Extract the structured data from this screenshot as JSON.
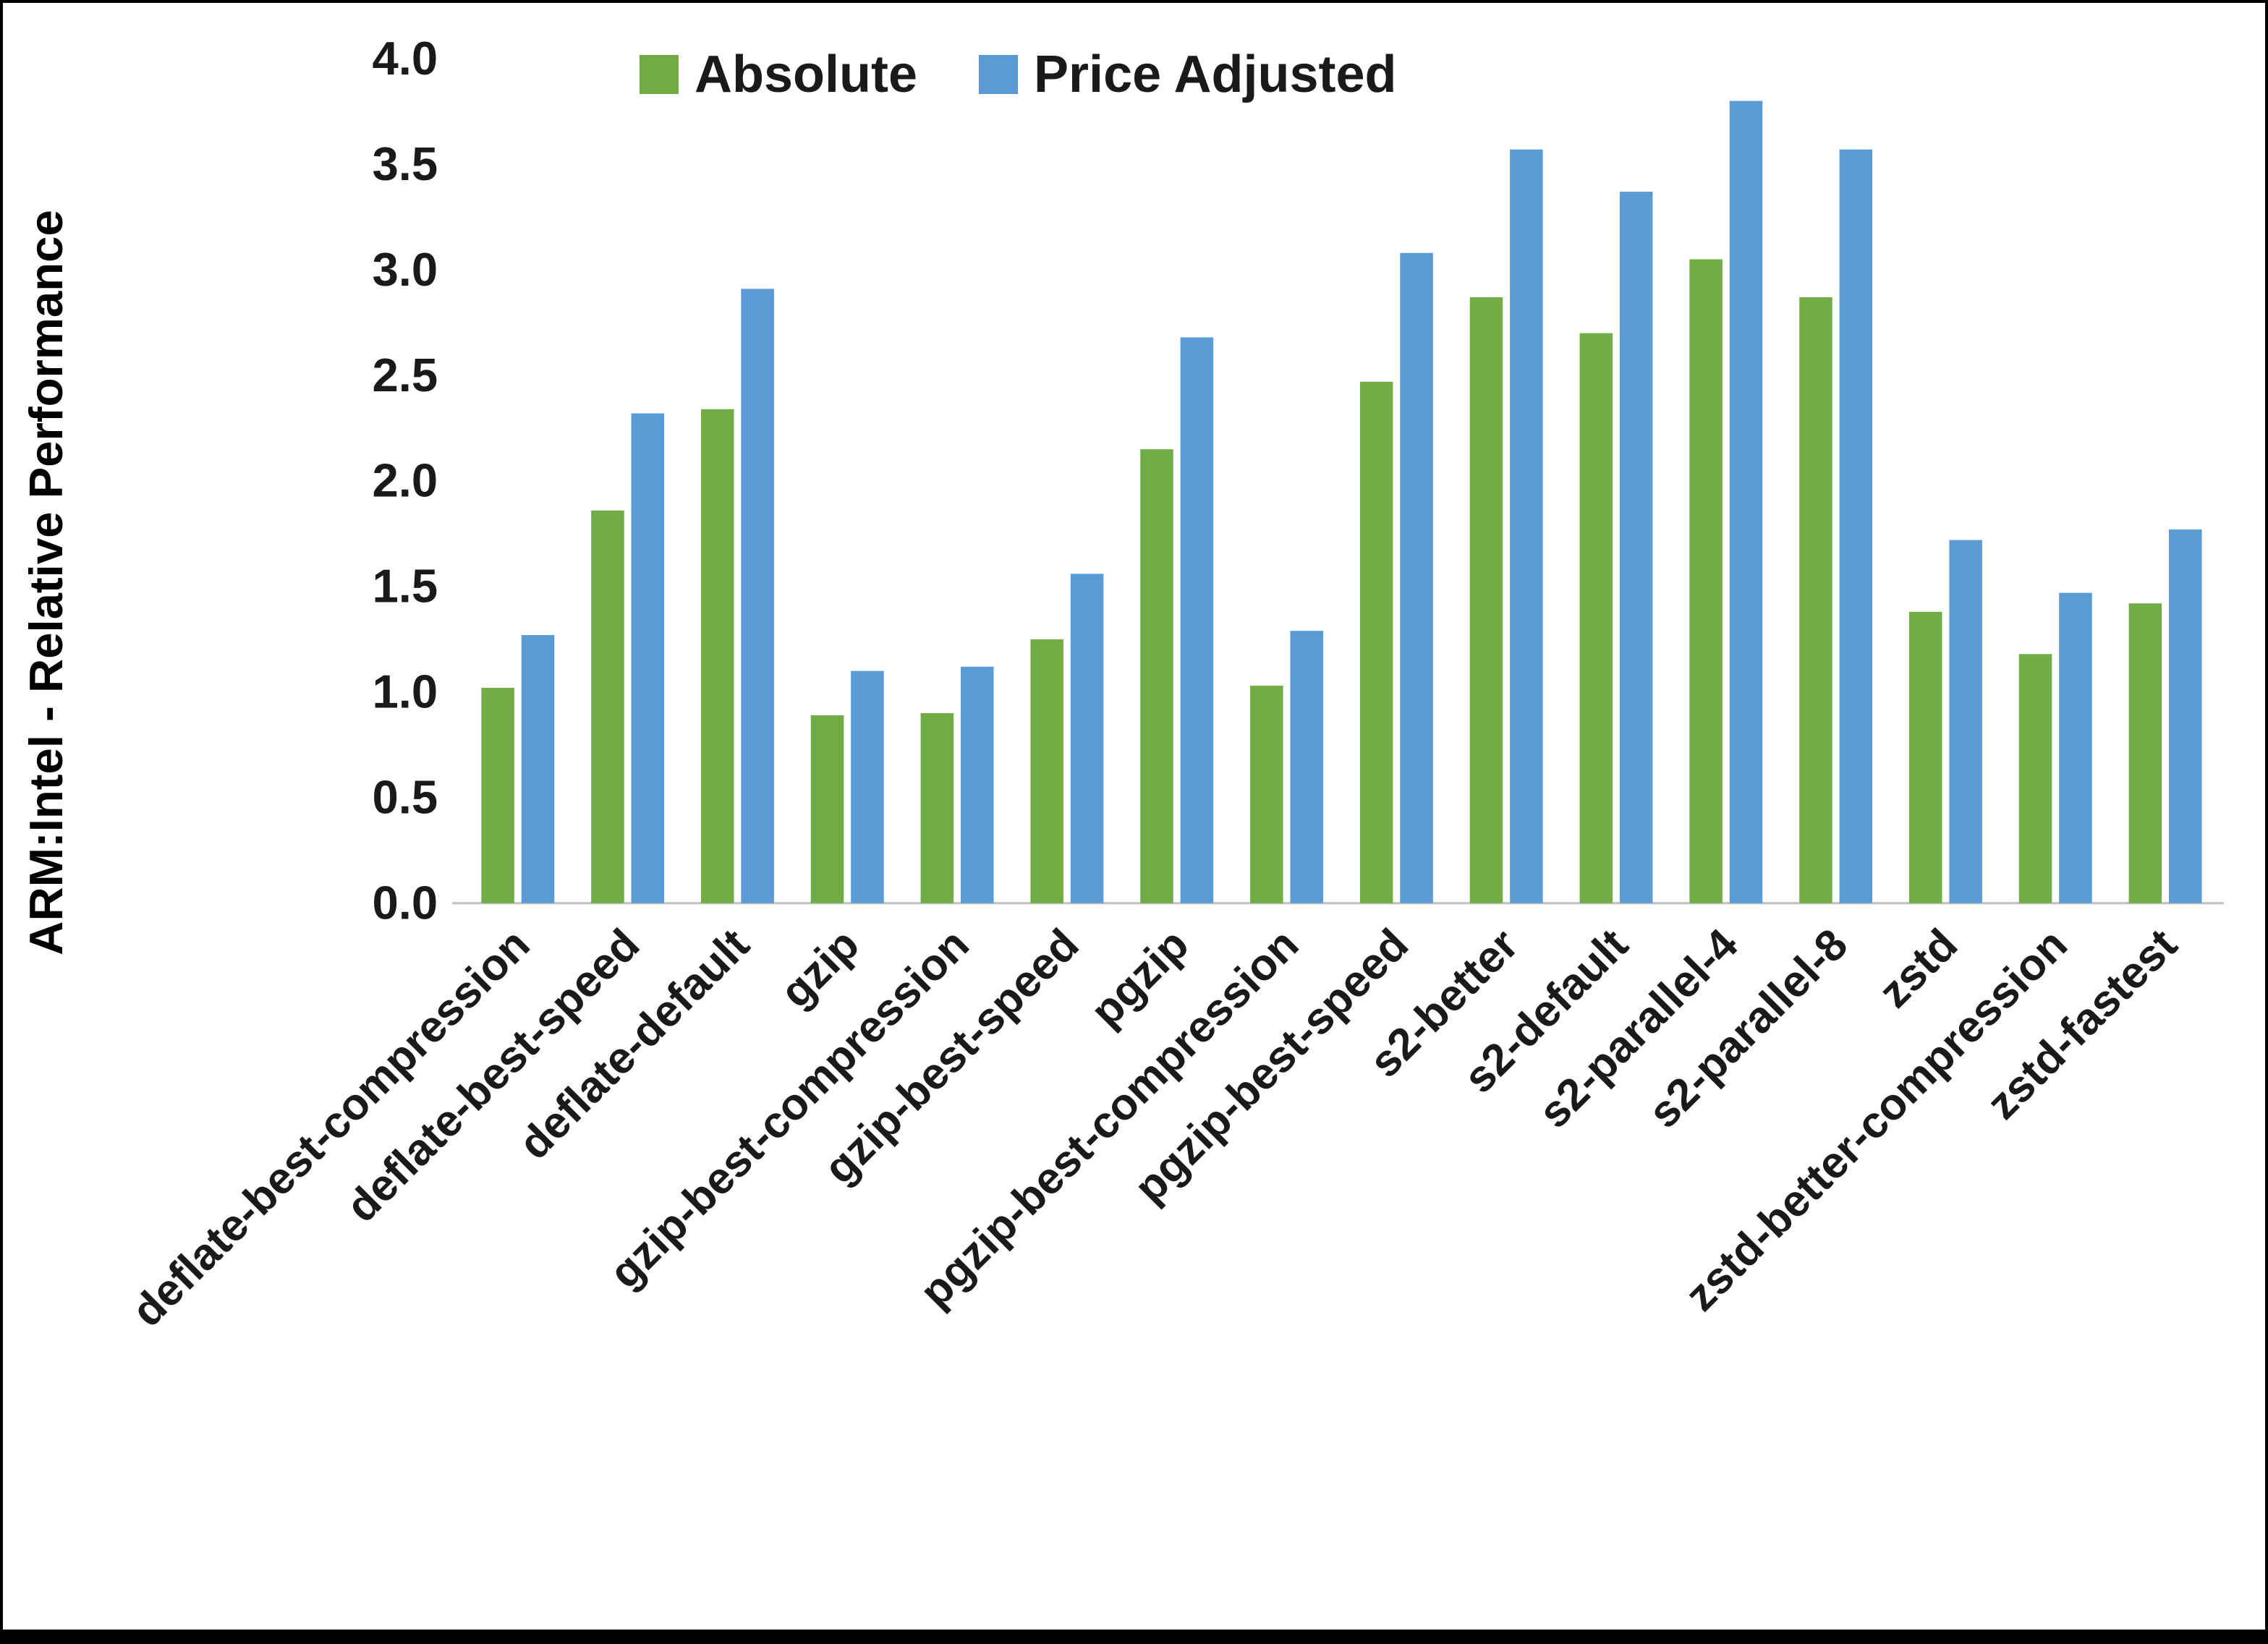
{
  "chart_data": {
    "type": "bar",
    "title": "",
    "xlabel": "",
    "ylabel": "ARM:Intel - Relative Performance",
    "ylim": [
      0,
      4.0
    ],
    "ytick_step": 0.5,
    "grid": false,
    "legend_position": "top-center",
    "background": "#ffffff",
    "categories": [
      "deflate-best-compression",
      "deflate-best-speed",
      "deflate-default",
      "gzip",
      "gzip-best-compression",
      "gzip-best-speed",
      "pgzip",
      "pgzip-best-compression",
      "pgzip-best-speed",
      "s2-better",
      "s2-default",
      "s2-parallel-4",
      "s2-parallel-8",
      "zstd",
      "zstd-better-compression",
      "zstd-fastest"
    ],
    "series": [
      {
        "name": "Absolute",
        "color": "#70AD47",
        "values": [
          1.02,
          1.86,
          2.34,
          0.89,
          0.9,
          1.25,
          2.15,
          1.03,
          2.47,
          2.87,
          2.7,
          3.05,
          2.87,
          1.38,
          1.18,
          1.42
        ]
      },
      {
        "name": "Price Adjusted",
        "color": "#5B9BD5",
        "values": [
          1.27,
          2.32,
          2.91,
          1.1,
          1.12,
          1.56,
          2.68,
          1.29,
          3.08,
          3.57,
          3.37,
          3.8,
          3.57,
          1.72,
          1.47,
          1.77
        ]
      }
    ]
  }
}
